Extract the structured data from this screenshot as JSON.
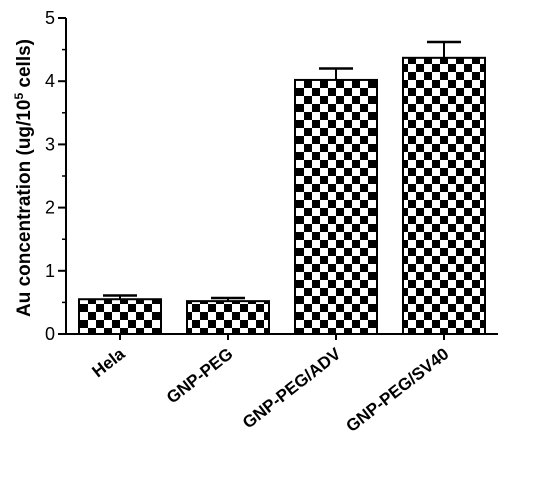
{
  "chart_data": {
    "type": "bar",
    "title": "",
    "xlabel": "",
    "ylabel": "Au concentration (ug/10",
    "ylabel_sup": "5",
    "ylabel_suffix": " cells)",
    "ylim": [
      0,
      5
    ],
    "yticks": [
      "0",
      "1",
      "2",
      "3",
      "4",
      "5"
    ],
    "categories": [
      "Hela",
      "GNP-PEG",
      "GNP-PEG/ADV",
      "GNP-PEG/SV40"
    ],
    "values": [
      0.55,
      0.52,
      4.02,
      4.37
    ],
    "errors": [
      0.06,
      0.05,
      0.18,
      0.25
    ],
    "grid": false,
    "legend": "none",
    "bar_fill": "checkerboard",
    "bar_colors": [
      "#000000",
      "#ffffff"
    ]
  }
}
